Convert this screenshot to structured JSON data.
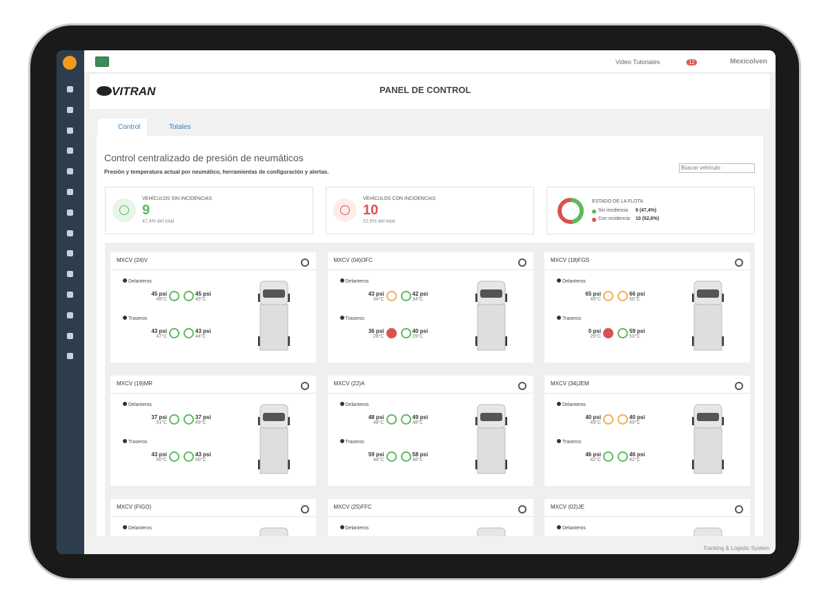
{
  "topbar": {
    "video": "Video Tutoriales",
    "notifications": "12",
    "user": "Mexicolven"
  },
  "header": {
    "logo": "VITRAN",
    "title": "PANEL DE CONTROL"
  },
  "tabs": [
    "Control",
    "Totales"
  ],
  "section": {
    "title": "Control centralizado de presión de neumáticos",
    "subtitle": "Presión y temperatura actual por neumático, herramientas de configuración y alertas.",
    "search_placeholder": "Buscar vehículo"
  },
  "summary": [
    {
      "label": "VEHÍCULOS SIN INCIDENCIAS",
      "value": "9",
      "note": "47,4% del total",
      "status": "ok"
    },
    {
      "label": "VEHÍCULOS CON INCIDENCIAS",
      "value": "10",
      "note": "52,6% del total",
      "status": "alert"
    }
  ],
  "fleet": {
    "label": "ESTADO DE LA FLOTA",
    "items": [
      {
        "name": "Sin incidencia",
        "value": 9,
        "value_label": "9 (47,4%)",
        "color": "#5cb85c"
      },
      {
        "name": "Con incidencia",
        "value": 10,
        "value_label": "10 (52,6%)",
        "color": "#d9534f"
      }
    ]
  },
  "vehicles": [
    {
      "name": "MXCV (24)V",
      "front": {
        "label": "Delanteros",
        "tires": [
          {
            "pressure": "45 psi",
            "temp": "48°C",
            "status": "ok"
          },
          {
            "pressure": "45 psi",
            "temp": "45°C",
            "status": "ok"
          }
        ]
      },
      "rear": {
        "label": "Traseros",
        "tires": [
          {
            "pressure": "43 psi",
            "temp": "47°C",
            "status": "ok"
          },
          {
            "pressure": "43 psi",
            "temp": "44°C",
            "status": "ok"
          }
        ]
      }
    },
    {
      "name": "MXCV (04)OFC",
      "front": {
        "label": "Delanteros",
        "tires": [
          {
            "pressure": "43 psi",
            "temp": "34°C",
            "status": "warn"
          },
          {
            "pressure": "42 psi",
            "temp": "34°C",
            "status": "ok"
          }
        ]
      },
      "rear": {
        "label": "Traseros",
        "tires": [
          {
            "pressure": "36 psi",
            "temp": "28°C",
            "status": "alert"
          },
          {
            "pressure": "40 psi",
            "temp": "29°C",
            "status": "ok"
          }
        ]
      }
    },
    {
      "name": "MXCV (18)FGS",
      "front": {
        "label": "Delanteros",
        "tires": [
          {
            "pressure": "65 psi",
            "temp": "49°C",
            "status": "warn"
          },
          {
            "pressure": "66 psi",
            "temp": "50°C",
            "status": "warn"
          }
        ]
      },
      "rear": {
        "label": "Traseros",
        "tires": [
          {
            "pressure": "0 psi",
            "temp": "29°C",
            "status": "alert"
          },
          {
            "pressure": "59 psi",
            "temp": "53°C",
            "status": "ok"
          }
        ]
      }
    },
    {
      "name": "MXCV (19)MR",
      "front": {
        "label": "Delanteros",
        "tires": [
          {
            "pressure": "37 psi",
            "temp": "51°C",
            "status": "ok"
          },
          {
            "pressure": "37 psi",
            "temp": "49°C",
            "status": "ok"
          }
        ]
      },
      "rear": {
        "label": "Traseros",
        "tires": [
          {
            "pressure": "43 psi",
            "temp": "50°C",
            "status": "ok"
          },
          {
            "pressure": "43 psi",
            "temp": "50°C",
            "status": "ok"
          }
        ]
      }
    },
    {
      "name": "MXCV (22)A",
      "front": {
        "label": "Delanteros",
        "tires": [
          {
            "pressure": "48 psi",
            "temp": "48°C",
            "status": "ok"
          },
          {
            "pressure": "49 psi",
            "temp": "48°C",
            "status": "ok"
          }
        ]
      },
      "rear": {
        "label": "Traseros",
        "tires": [
          {
            "pressure": "59 psi",
            "temp": "44°C",
            "status": "ok"
          },
          {
            "pressure": "58 psi",
            "temp": "46°C",
            "status": "ok"
          }
        ]
      }
    },
    {
      "name": "MXCV (34)JEM",
      "front": {
        "label": "Delanteros",
        "tires": [
          {
            "pressure": "40 psi",
            "temp": "49°C",
            "status": "warn"
          },
          {
            "pressure": "40 psi",
            "temp": "49°C",
            "status": "warn"
          }
        ]
      },
      "rear": {
        "label": "Traseros",
        "tires": [
          {
            "pressure": "46 psi",
            "temp": "42°C",
            "status": "ok"
          },
          {
            "pressure": "46 psi",
            "temp": "42°C",
            "status": "ok"
          }
        ]
      }
    },
    {
      "name": "MXCV (FIGO)",
      "front": {
        "label": "Delanteros"
      }
    },
    {
      "name": "MXCV (25)FFC",
      "front": {
        "label": "Delanteros"
      }
    },
    {
      "name": "MXCV (02)JE",
      "front": {
        "label": "Delanteros"
      }
    }
  ],
  "footer": "Tracking & Logistic System"
}
